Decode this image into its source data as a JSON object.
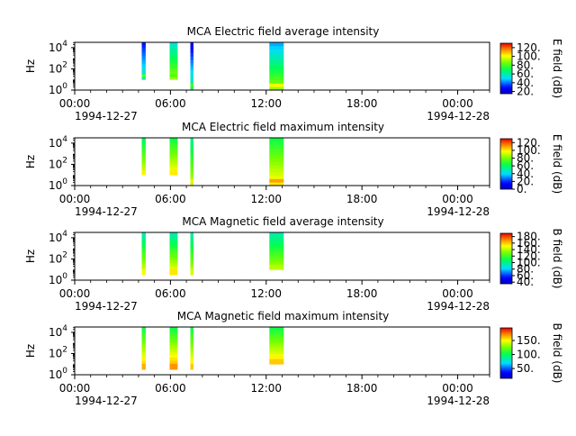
{
  "figure": {
    "time_ticks": [
      "00:00",
      "06:00",
      "12:00",
      "18:00",
      "00:00"
    ],
    "date_start": "1994-12-27",
    "date_end": "1994-12-28",
    "ylabel": "Hz"
  },
  "chart_data": [
    {
      "type": "heatmap",
      "title": "MCA  Electric field average intensity",
      "xlabel": "",
      "ylabel": "Hz",
      "x_range": [
        "1994-12-27 00:00",
        "1994-12-28 02:00"
      ],
      "y_range_log10": [
        0,
        4.5
      ],
      "y_ticks_log10": [
        0,
        2,
        4
      ],
      "colorbar": {
        "label": "E field (dB)",
        "range": [
          15,
          130
        ],
        "ticks": [
          "120.",
          "100.",
          "80.",
          "60.",
          "40.",
          "20."
        ],
        "tick_values": [
          120,
          100,
          80,
          60,
          40,
          20
        ]
      },
      "blocks": [
        {
          "start_h": 4.2,
          "end_h": 4.45,
          "ymin_log10": 1.0,
          "ymax_log10": 4.5,
          "base_db": 60,
          "top_db": 30,
          "peak_db": 85
        },
        {
          "start_h": 5.95,
          "end_h": 6.45,
          "ymin_log10": 1.0,
          "ymax_log10": 4.5,
          "base_db": 90,
          "top_db": 55,
          "peak_db": 80
        },
        {
          "start_h": 7.25,
          "end_h": 7.45,
          "ymin_log10": 0.0,
          "ymax_log10": 4.5,
          "base_db": 65,
          "top_db": 25,
          "peak_db": 80
        },
        {
          "start_h": 12.2,
          "end_h": 13.1,
          "ymin_log10": 0.0,
          "ymax_log10": 4.5,
          "base_db": 90,
          "top_db": 45,
          "peak_db": 100
        }
      ]
    },
    {
      "type": "heatmap",
      "title": "MCA  Electric field maximum intensity",
      "xlabel": "",
      "ylabel": "Hz",
      "x_range": [
        "1994-12-27 00:00",
        "1994-12-28 02:00"
      ],
      "y_range_log10": [
        0,
        4.5
      ],
      "y_ticks_log10": [
        0,
        2,
        4
      ],
      "colorbar": {
        "label": "E field (dB)",
        "range": [
          0,
          130
        ],
        "ticks": [
          "120.",
          "100.",
          "80.",
          "60.",
          "40.",
          "20.",
          "0."
        ],
        "tick_values": [
          120,
          100,
          80,
          60,
          40,
          20,
          0
        ]
      },
      "blocks": [
        {
          "start_h": 4.2,
          "end_h": 4.45,
          "ymin_log10": 1.0,
          "ymax_log10": 4.5,
          "base_db": 95,
          "top_db": 60,
          "peak_db": 100
        },
        {
          "start_h": 5.95,
          "end_h": 6.45,
          "ymin_log10": 1.0,
          "ymax_log10": 4.5,
          "base_db": 100,
          "top_db": 65,
          "peak_db": 100
        },
        {
          "start_h": 7.25,
          "end_h": 7.45,
          "ymin_log10": 0.0,
          "ymax_log10": 4.5,
          "base_db": 90,
          "top_db": 55,
          "peak_db": 100
        },
        {
          "start_h": 12.2,
          "end_h": 13.1,
          "ymin_log10": 0.0,
          "ymax_log10": 4.5,
          "base_db": 100,
          "top_db": 65,
          "peak_db": 110
        }
      ]
    },
    {
      "type": "heatmap",
      "title": "MCA  Magnetic field average intensity",
      "xlabel": "",
      "ylabel": "Hz",
      "x_range": [
        "1994-12-27 00:00",
        "1994-12-28 02:00"
      ],
      "y_range_log10": [
        0,
        4.5
      ],
      "y_ticks_log10": [
        0,
        2,
        4
      ],
      "colorbar": {
        "label": "B field (dB)",
        "range": [
          35,
          190
        ],
        "ticks": [
          "180.",
          "160.",
          "140.",
          "120.",
          "100.",
          "80.",
          "60.",
          "40."
        ],
        "tick_values": [
          180,
          160,
          140,
          120,
          100,
          80,
          60,
          40
        ]
      },
      "blocks": [
        {
          "start_h": 4.2,
          "end_h": 4.45,
          "ymin_log10": 0.5,
          "ymax_log10": 4.5,
          "base_db": 150,
          "top_db": 95,
          "peak_db": 150
        },
        {
          "start_h": 5.95,
          "end_h": 6.45,
          "ymin_log10": 0.5,
          "ymax_log10": 4.5,
          "base_db": 155,
          "top_db": 95,
          "peak_db": 155
        },
        {
          "start_h": 7.25,
          "end_h": 7.45,
          "ymin_log10": 0.5,
          "ymax_log10": 4.5,
          "base_db": 145,
          "top_db": 95,
          "peak_db": 145
        },
        {
          "start_h": 12.2,
          "end_h": 13.1,
          "ymin_log10": 1.0,
          "ymax_log10": 4.5,
          "base_db": 140,
          "top_db": 95,
          "peak_db": 140
        }
      ]
    },
    {
      "type": "heatmap",
      "title": "MCA  Magnetic field maximum intensity",
      "xlabel": "",
      "ylabel": "Hz",
      "x_range": [
        "1994-12-27 00:00",
        "1994-12-28 02:00"
      ],
      "y_range_log10": [
        0,
        4.5
      ],
      "y_ticks_log10": [
        0,
        2,
        4
      ],
      "colorbar": {
        "label": "B field (dB)",
        "range": [
          15,
          195
        ],
        "ticks": [
          "150.",
          "100.",
          "50."
        ],
        "tick_values": [
          150,
          100,
          50
        ]
      },
      "blocks": [
        {
          "start_h": 4.2,
          "end_h": 4.45,
          "ymin_log10": 0.5,
          "ymax_log10": 4.5,
          "base_db": 165,
          "top_db": 105,
          "peak_db": 165
        },
        {
          "start_h": 5.95,
          "end_h": 6.45,
          "ymin_log10": 0.5,
          "ymax_log10": 4.5,
          "base_db": 170,
          "top_db": 105,
          "peak_db": 170
        },
        {
          "start_h": 7.25,
          "end_h": 7.45,
          "ymin_log10": 0.5,
          "ymax_log10": 4.5,
          "base_db": 160,
          "top_db": 105,
          "peak_db": 160
        },
        {
          "start_h": 12.2,
          "end_h": 13.1,
          "ymin_log10": 1.0,
          "ymax_log10": 4.5,
          "base_db": 160,
          "top_db": 105,
          "peak_db": 160
        }
      ]
    }
  ]
}
